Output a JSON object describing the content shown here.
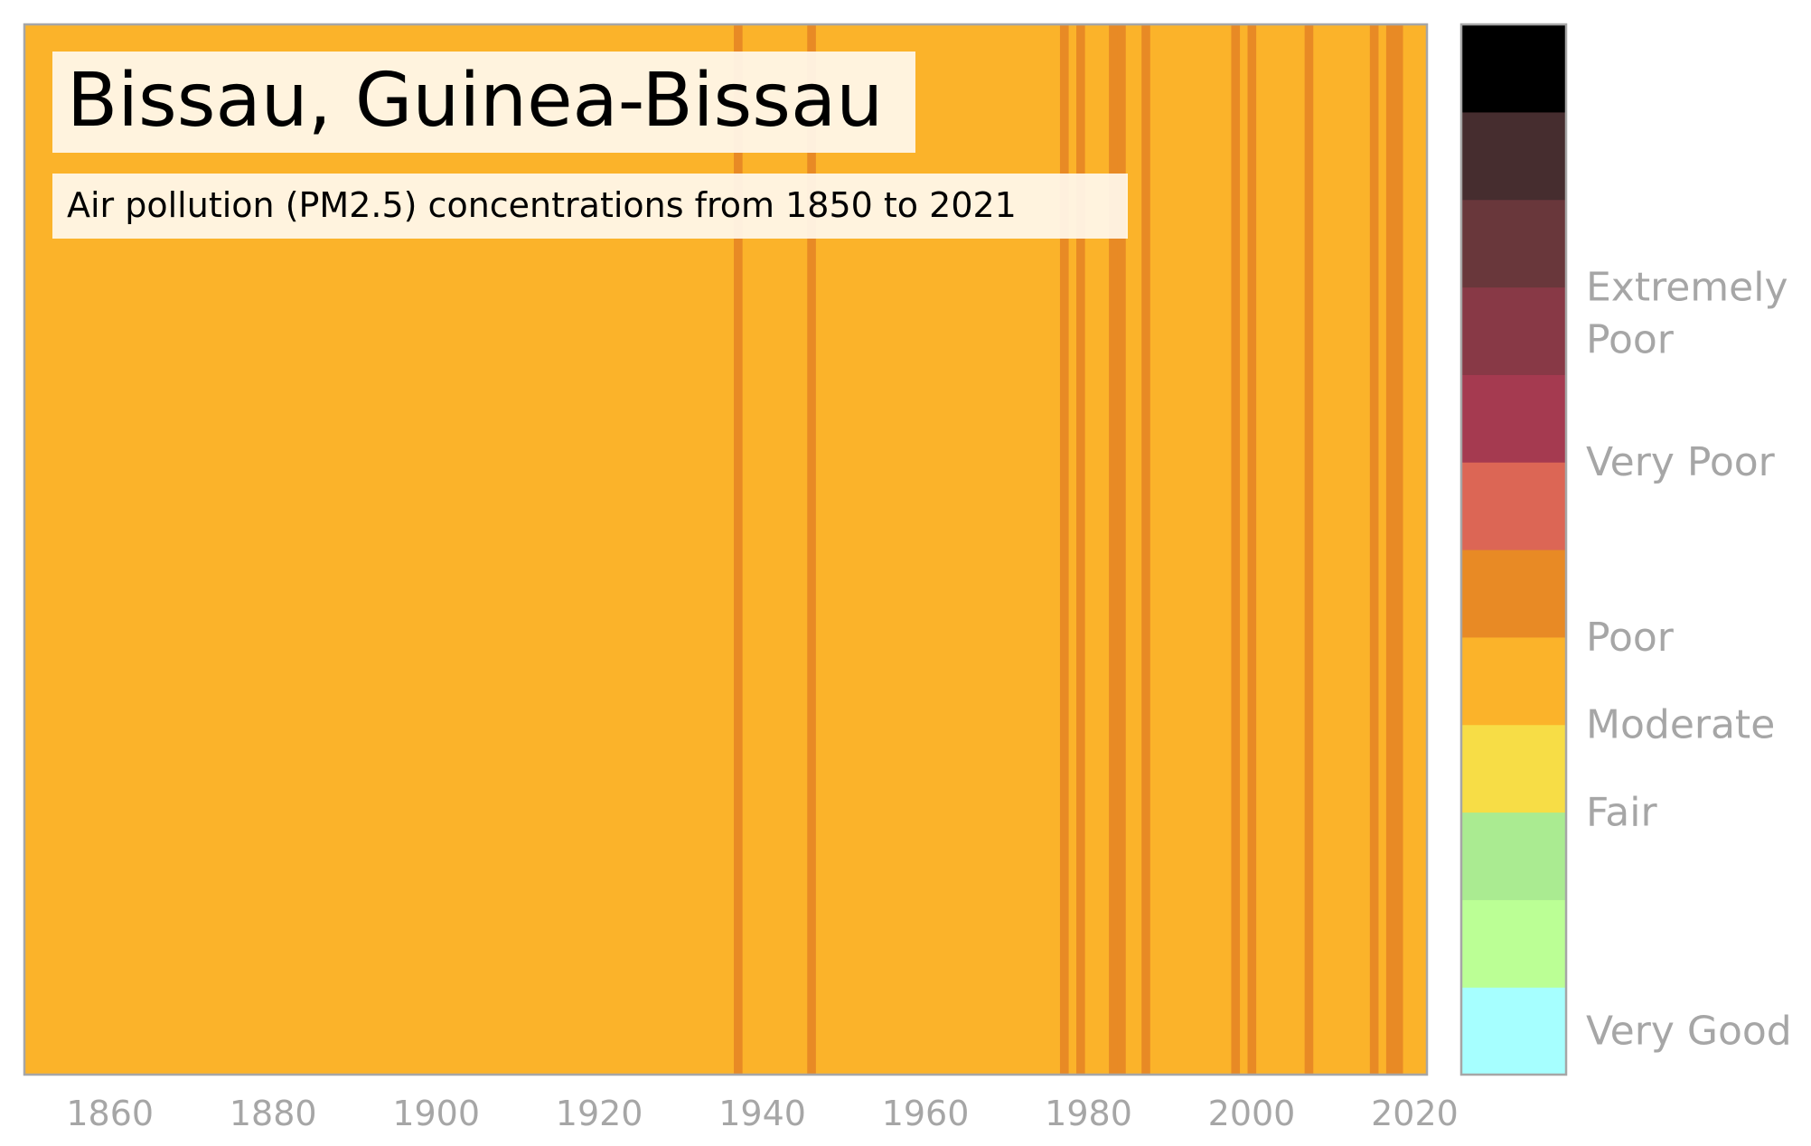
{
  "chart_data": {
    "type": "heatmap",
    "title": "Bissau, Guinea-Bissau",
    "subtitle": "Air pollution (PM2.5) concentrations from 1850 to 2021",
    "x_range": [
      1850,
      2021
    ],
    "x_ticks": [
      1860,
      1880,
      1900,
      1920,
      1940,
      1960,
      1980,
      2000,
      2020
    ],
    "base_category": "Moderate",
    "base_color": "#fbb32a",
    "poor_color": "#e88a25",
    "poor_years": [
      1937,
      1946,
      1977,
      1979,
      1983,
      1984,
      1987,
      1998,
      2000,
      2007,
      2015,
      2017,
      2018
    ],
    "colorbar": {
      "colors_bottom_to_top": [
        "#a6ffff",
        "#bbff95",
        "#aaeb91",
        "#f7dd46",
        "#fbb32a",
        "#e88a25",
        "#dc6655",
        "#a53a50",
        "#883946",
        "#69373b",
        "#462d2f",
        "#000000"
      ],
      "labels": [
        {
          "text": "Very Good",
          "lines": [
            "Very Good"
          ],
          "level": 0.5
        },
        {
          "text": "Fair",
          "lines": [
            "Fair"
          ],
          "level": 3.0
        },
        {
          "text": "Moderate",
          "lines": [
            "Moderate"
          ],
          "level": 4.0
        },
        {
          "text": "Poor",
          "lines": [
            "Poor"
          ],
          "level": 5.0
        },
        {
          "text": "Very Poor",
          "lines": [
            "Very Poor"
          ],
          "level": 7.0
        },
        {
          "text": "Extremely Poor",
          "lines": [
            "Extremely",
            "Poor"
          ],
          "level": 8.7
        }
      ]
    }
  }
}
